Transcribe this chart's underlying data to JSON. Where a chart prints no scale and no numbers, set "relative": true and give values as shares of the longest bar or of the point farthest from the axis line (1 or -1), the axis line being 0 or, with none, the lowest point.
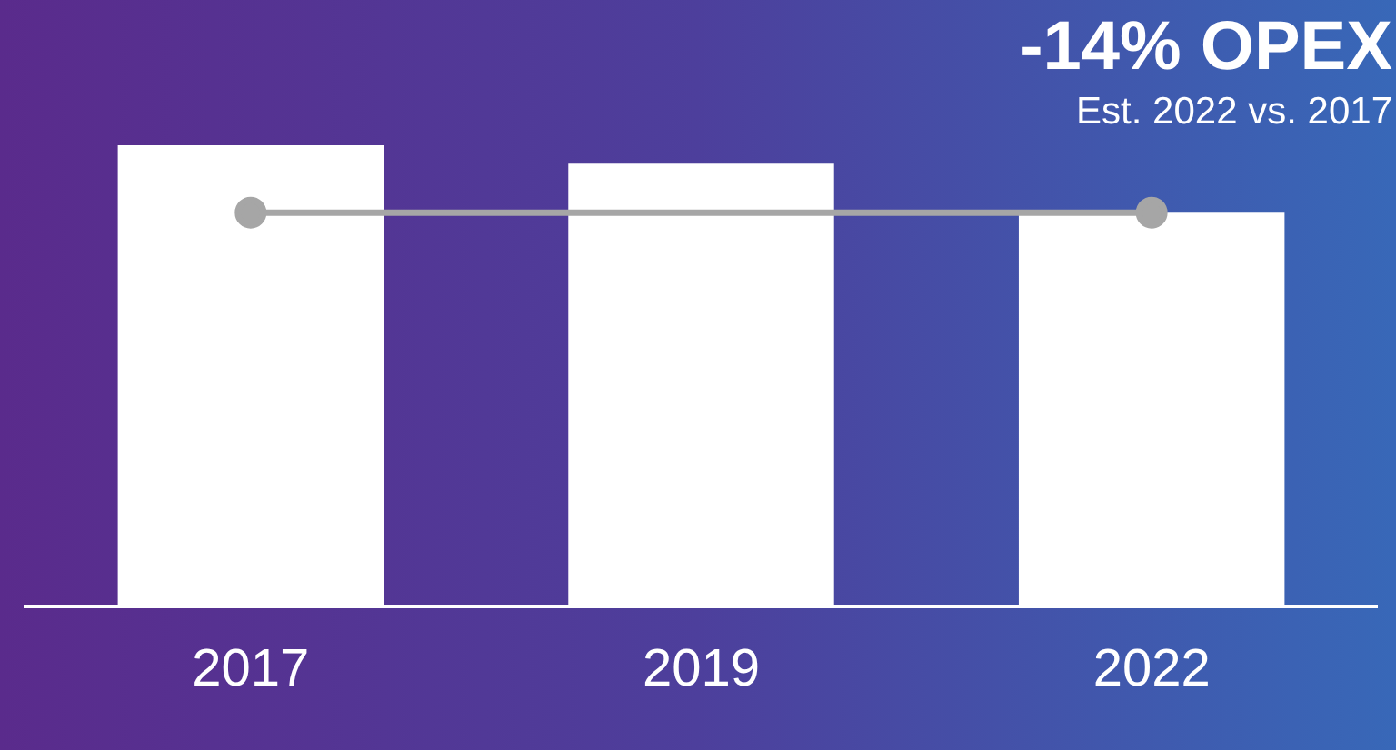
{
  "chart_data": {
    "type": "bar",
    "title": "-14% OPEX",
    "subtitle": "Est. 2022 vs. 2017",
    "relative": true,
    "grid": false,
    "legend": false,
    "categories": [
      "2017",
      "2019",
      "2022"
    ],
    "series": [
      {
        "color": "#ffffff",
        "values": [
          1,
          0.96,
          0.854
        ]
      },
      {
        "type": "line",
        "color": "#a6a6a6",
        "values": [
          0.854,
          null,
          0.854
        ],
        "marker": "circle"
      }
    ]
  }
}
